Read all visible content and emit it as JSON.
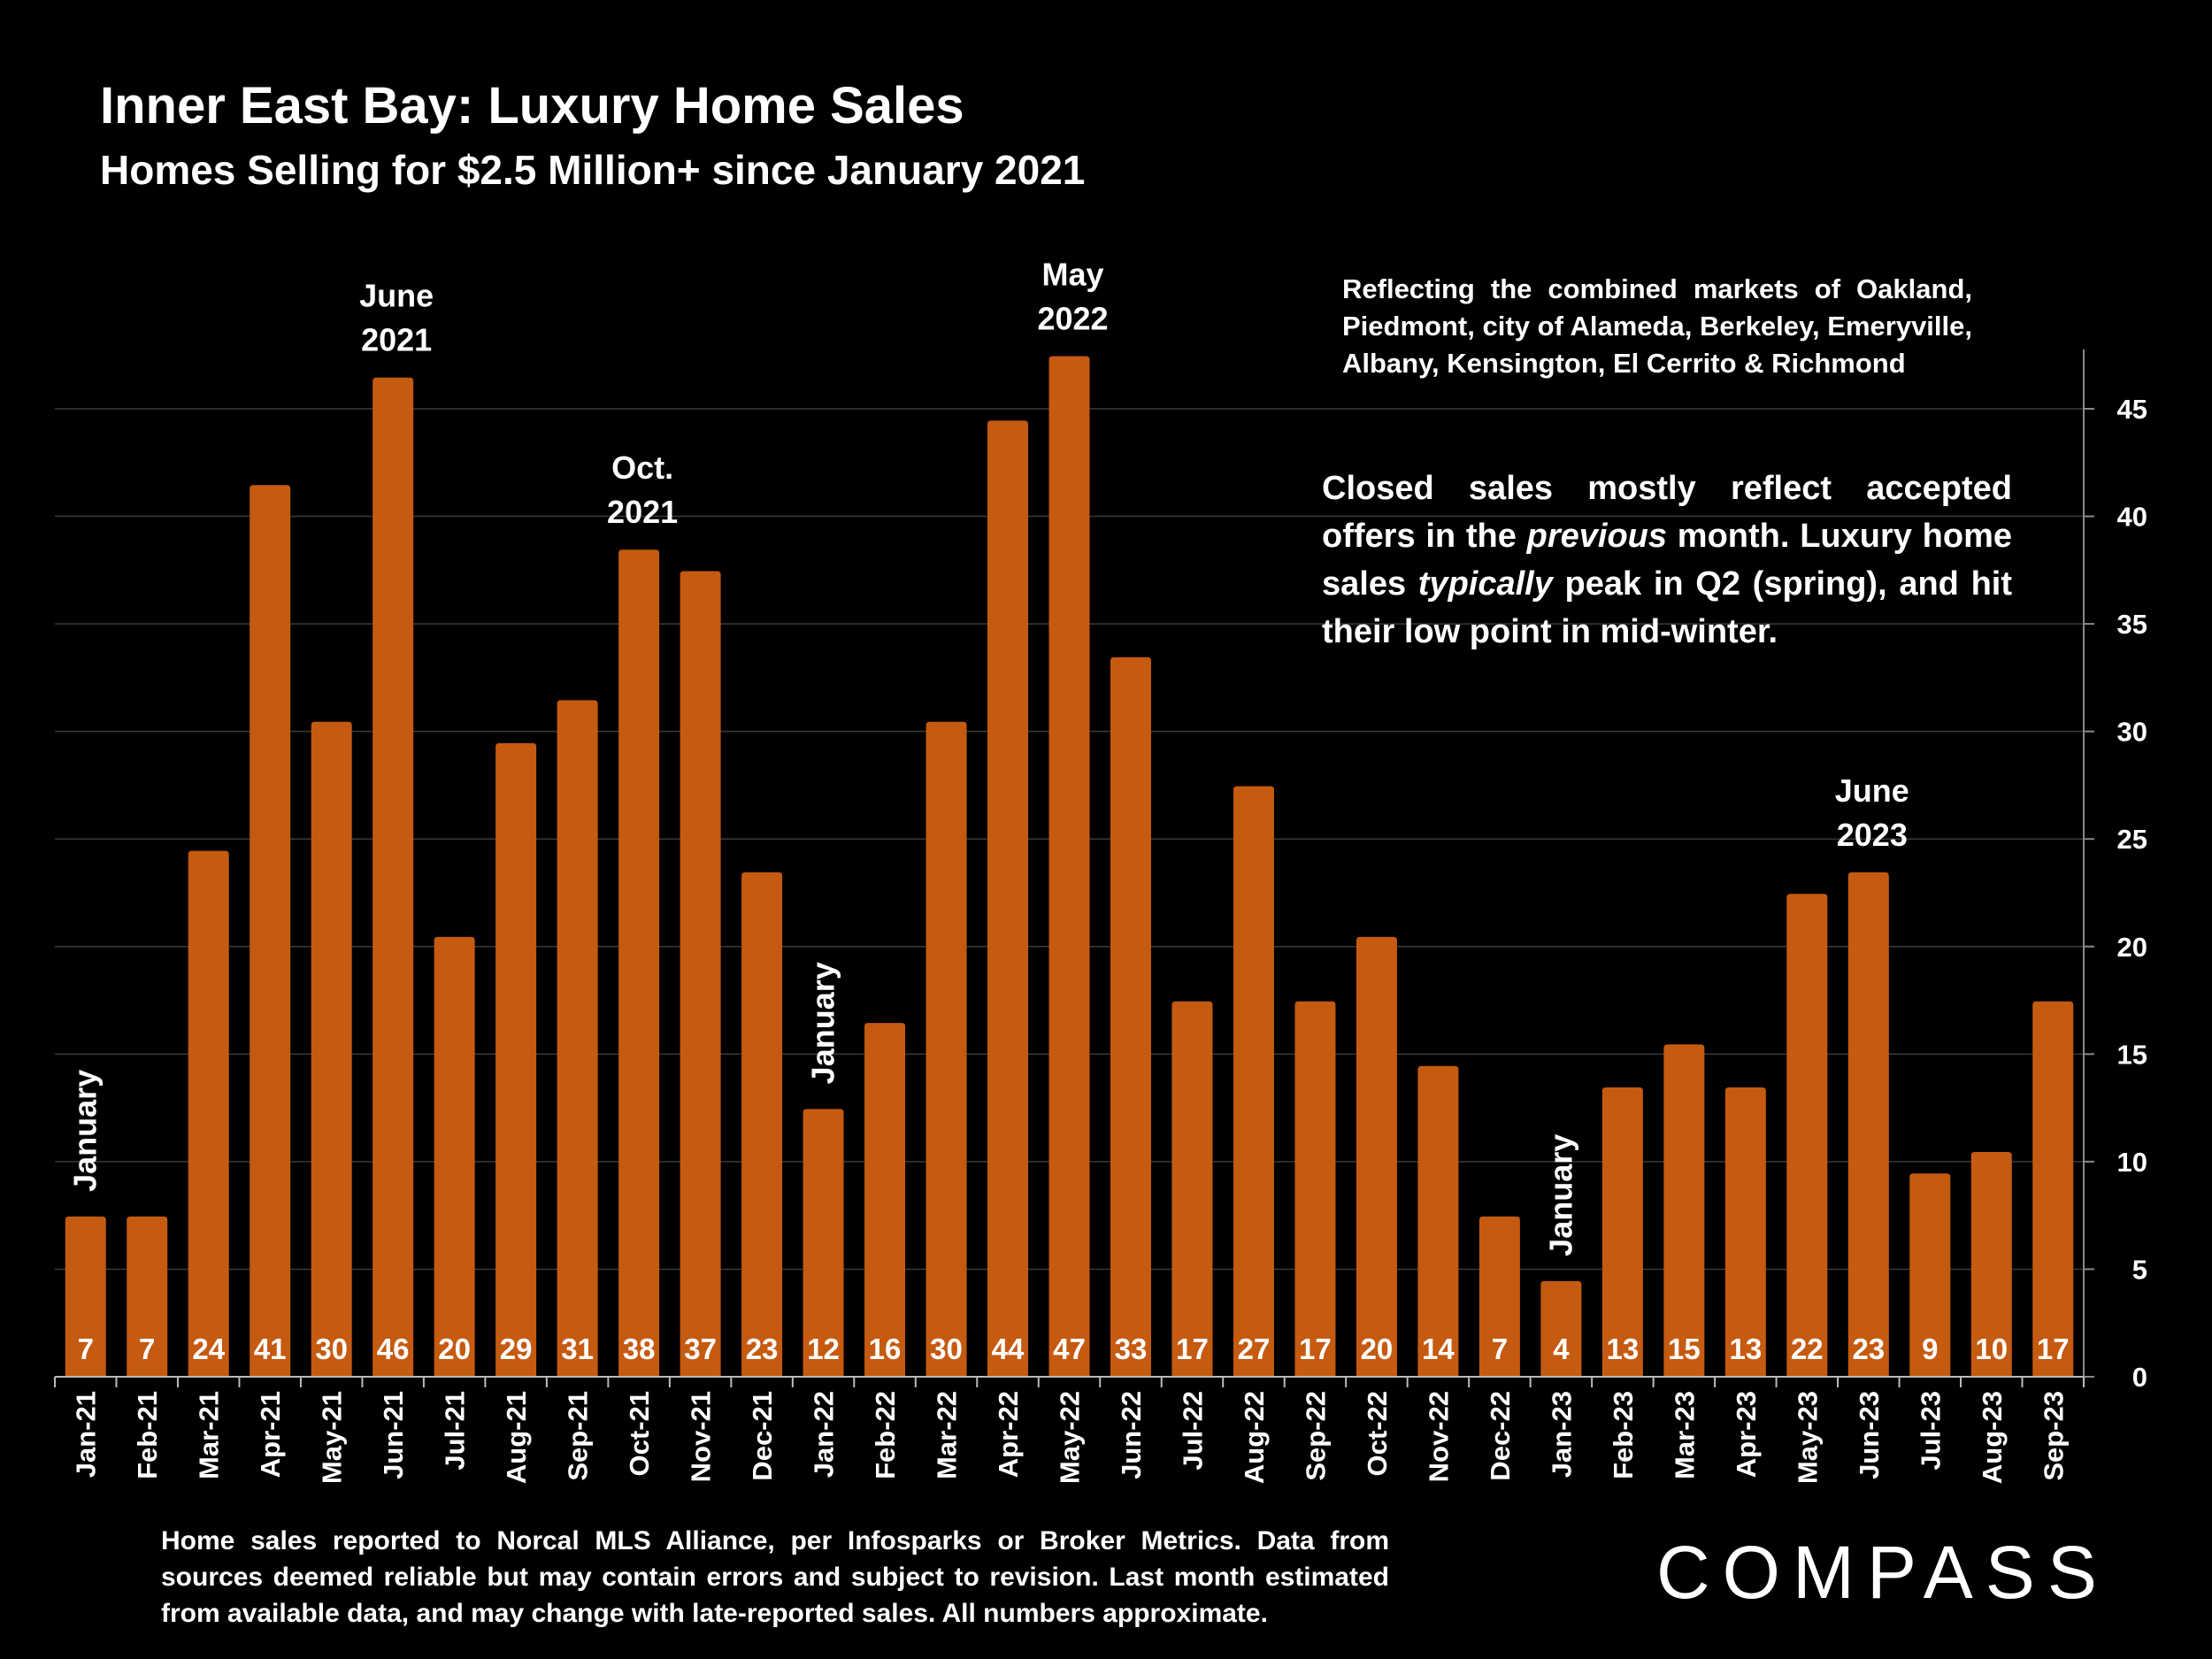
{
  "title": "Inner East Bay: Luxury Home Sales",
  "subtitle": "Homes Selling for $2.5 Million+ since January 2021",
  "note_markets": "Reflecting the combined markets of Oakland, Piedmont, city of Alameda, Berkeley, Emeryville, Albany, Kensington, El Cerrito & Richmond",
  "note_seasonality": {
    "part1": "Closed sales mostly reflect accepted offers in the ",
    "em1": "previous",
    "part2": " month. Luxury home sales ",
    "em2": "typically",
    "part3": " peak in Q2 (spring), and hit their low point in mid-winter."
  },
  "footer": "Home sales reported to Norcal MLS Alliance, per Infosparks or Broker Metrics. Data from sources deemed reliable but may contain errors and subject to revision.  Last month estimated from available data, and may change with late-reported sales. All numbers approximate.",
  "logo": "COMPASS",
  "colors": {
    "bar": "#C55A11",
    "background": "#000000",
    "grid": "#3a3a3a",
    "text": "#FFFFFF"
  },
  "chart_data": {
    "type": "bar",
    "categories": [
      "Jan-21",
      "Feb-21",
      "Mar-21",
      "Apr-21",
      "May-21",
      "Jun-21",
      "Jul-21",
      "Aug-21",
      "Sep-21",
      "Oct-21",
      "Nov-21",
      "Dec-21",
      "Jan-22",
      "Feb-22",
      "Mar-22",
      "Apr-22",
      "May-22",
      "Jun-22",
      "Jul-22",
      "Aug-22",
      "Sep-22",
      "Oct-22",
      "Nov-22",
      "Dec-22",
      "Jan-23",
      "Feb-23",
      "Mar-23",
      "Apr-23",
      "May-23",
      "Jun-23",
      "Jul-23",
      "Aug-23",
      "Sep-23"
    ],
    "values": [
      7,
      7,
      24,
      41,
      30,
      46,
      20,
      29,
      31,
      38,
      37,
      23,
      12,
      16,
      30,
      44,
      47,
      33,
      17,
      27,
      17,
      20,
      14,
      7,
      4,
      13,
      15,
      13,
      22,
      23,
      9,
      10,
      17
    ],
    "ylim": [
      0,
      45
    ],
    "yticks": [
      0,
      5,
      10,
      15,
      20,
      25,
      30,
      35,
      40,
      45
    ],
    "y_axis_side": "right",
    "grid": true,
    "data_labels": "inside-bottom",
    "annotations": [
      {
        "category": "Jan-21",
        "text": "January",
        "orientation": "vertical"
      },
      {
        "category": "Jun-21",
        "lines": [
          "June",
          "2021"
        ],
        "orientation": "horizontal"
      },
      {
        "category": "Oct-21",
        "lines": [
          "Oct.",
          "2021"
        ],
        "orientation": "horizontal"
      },
      {
        "category": "Jan-22",
        "text": "January",
        "orientation": "vertical"
      },
      {
        "category": "May-22",
        "lines": [
          "May",
          "2022"
        ],
        "orientation": "horizontal"
      },
      {
        "category": "Jan-23",
        "text": "January",
        "orientation": "vertical"
      },
      {
        "category": "Jun-23",
        "lines": [
          "June",
          "2023"
        ],
        "orientation": "horizontal"
      }
    ]
  }
}
